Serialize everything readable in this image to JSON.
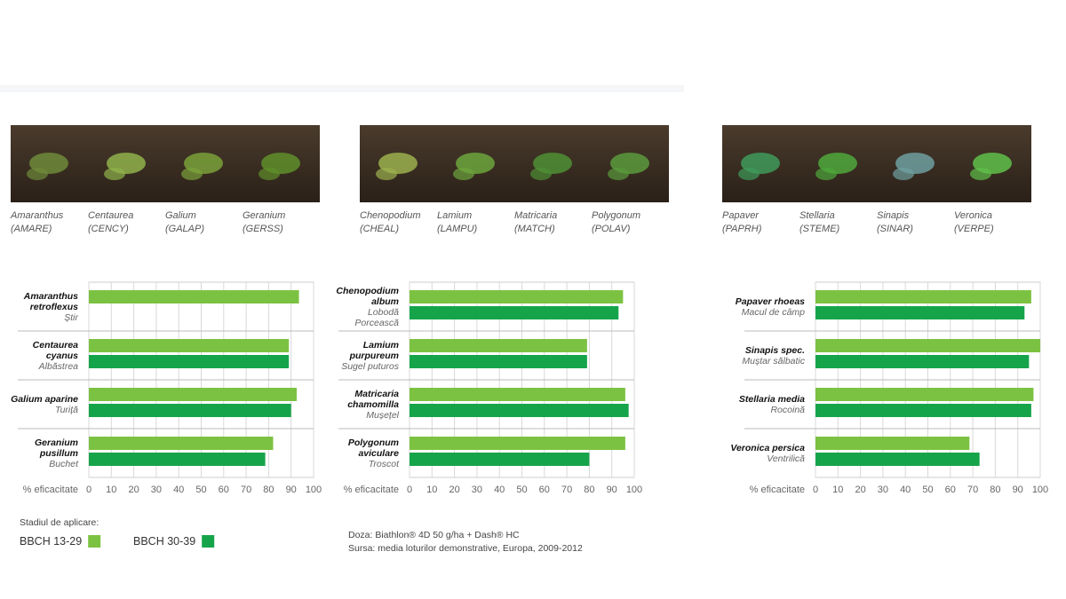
{
  "photos": [
    {
      "name": "Amaranthus",
      "code": "(AMARE)"
    },
    {
      "name": "Centaurea",
      "code": "(CENCY)"
    },
    {
      "name": "Galium",
      "code": "(GALAP)"
    },
    {
      "name": "Geranium",
      "code": "(GERSS)"
    },
    {
      "name": "Chenopodium",
      "code": "(CHEAL)"
    },
    {
      "name": "Lamium",
      "code": "(LAMPU)"
    },
    {
      "name": "Matricaria",
      "code": "(MATCH)"
    },
    {
      "name": "Polygonum",
      "code": "(POLAV)"
    },
    {
      "name": "Papaver",
      "code": "(PAPRH)"
    },
    {
      "name": "Stellaria",
      "code": "(STEME)"
    },
    {
      "name": "Sinapis",
      "code": "(SINAR)"
    },
    {
      "name": "Veronica",
      "code": "(VERPE)"
    }
  ],
  "chart_data": [
    {
      "type": "bar",
      "orientation": "horizontal",
      "xlabel": "% eficacitate",
      "categories": [
        "Amaranthus retroflexus",
        "Centaurea cyanus",
        "Galium aparine",
        "Geranium pusillum"
      ],
      "common_names": [
        "Știr",
        "Albăstrea",
        "Turiță",
        "Buchet"
      ],
      "series": [
        {
          "name": "BBCH 13-29",
          "color": "#7cc242",
          "values": [
            93.5,
            89,
            92.5,
            82
          ]
        },
        {
          "name": "BBCH 30-39",
          "color": "#16a44a",
          "values": [
            null,
            89,
            90,
            78.5
          ]
        }
      ],
      "xlim": [
        0,
        100
      ],
      "xticks": [
        0,
        10,
        20,
        30,
        40,
        50,
        60,
        70,
        80,
        90,
        100
      ],
      "grid": true
    },
    {
      "type": "bar",
      "orientation": "horizontal",
      "xlabel": "% eficacitate",
      "categories": [
        "Chenopodium album",
        "Lamium purpureum",
        "Matricaria chamomilla",
        "Polygonum aviculare"
      ],
      "common_names": [
        "Lobodă Porcească",
        "Sugel puturos",
        "Mușețel",
        "Troscot"
      ],
      "series": [
        {
          "color": "#7cc242",
          "values": [
            95,
            79,
            96,
            96
          ]
        },
        {
          "color": "#16a44a",
          "values": [
            93,
            79,
            97.5,
            80
          ]
        }
      ],
      "xlim": [
        0,
        100
      ],
      "xticks": [
        0,
        10,
        20,
        30,
        40,
        50,
        60,
        70,
        80,
        90,
        100
      ],
      "grid": true
    },
    {
      "type": "bar",
      "orientation": "horizontal",
      "xlabel": "% eficacitate",
      "categories": [
        "Papaver rhoeas",
        "Sinapis spec.",
        "Stellaria media",
        "Veronica persica"
      ],
      "common_names": [
        "Macul de câmp",
        "Muștar sălbatic",
        "Rocoină",
        "Ventrilică"
      ],
      "series": [
        {
          "color": "#7cc242",
          "values": [
            96,
            100,
            97,
            68.5
          ]
        },
        {
          "color": "#16a44a",
          "values": [
            93,
            95,
            96,
            73
          ]
        }
      ],
      "xlim": [
        0,
        100
      ],
      "xticks": [
        0,
        10,
        20,
        30,
        40,
        50,
        60,
        70,
        80,
        90,
        100
      ],
      "grid": true
    }
  ],
  "legend_title": "Stadiul de aplicare:",
  "notes": [
    "Doza: Biathlon® 4D 50 g/ha + Dash® HC",
    "Sursa: media loturilor demonstrative, Europa, 2009-2012"
  ]
}
